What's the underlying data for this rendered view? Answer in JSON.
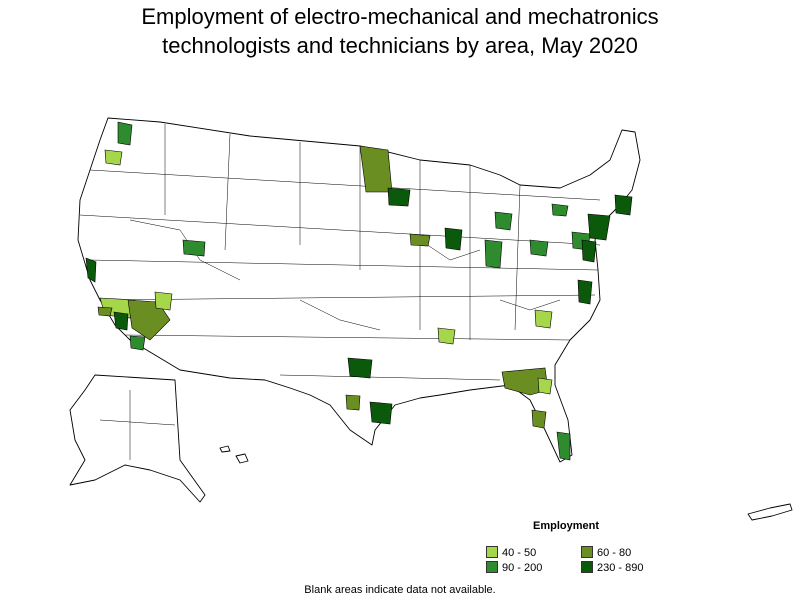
{
  "title_line1": "Employment of electro-mechanical and mechatronics",
  "title_line2": "technologists and technicians by area, May 2020",
  "legend": {
    "title": "Employment",
    "items": [
      {
        "label": "40 - 50",
        "color": "#a6d74a"
      },
      {
        "label": "60 - 80",
        "color": "#6b8e23"
      },
      {
        "label": "90 - 200",
        "color": "#2e8b2e"
      },
      {
        "label": "230 - 890",
        "color": "#0b5a0b"
      }
    ]
  },
  "note": "Blank areas indicate data not available."
}
